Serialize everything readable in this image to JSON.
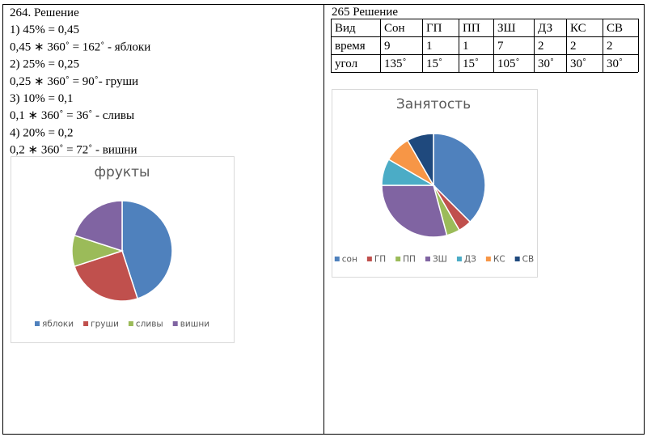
{
  "document": {
    "left": {
      "lines": [
        "264. Решение",
        "1) 45% = 0,45",
        "0,45 ∗ 360˚ = 162˚ - яблоки",
        "2) 25% = 0,25",
        "0,25 ∗ 360˚ = 90˚- груши",
        "3) 10% = 0,1",
        "0,1 ∗ 360˚ = 36˚ - сливы",
        "4) 20% = 0,2",
        "0,2 ∗ 360˚ = 72˚ - вишни"
      ]
    },
    "right": {
      "heading": "265 Решение",
      "table": {
        "header": [
          "Вид",
          "Сон",
          "ГП",
          "ПП",
          "ЗШ",
          "ДЗ",
          "КС",
          "СВ"
        ],
        "rows": [
          [
            "время",
            "9",
            "1",
            "1",
            "7",
            "2",
            "2",
            "2"
          ],
          [
            "угол",
            "135˚",
            "15˚",
            "15˚",
            "105˚",
            "30˚",
            "30˚",
            "30˚"
          ]
        ]
      }
    }
  },
  "chart_data": [
    {
      "type": "pie",
      "title": "фрукты",
      "categories": [
        "яблоки",
        "груши",
        "сливы",
        "вишни"
      ],
      "values": [
        45,
        25,
        10,
        20
      ],
      "colors": [
        "#4f81bd",
        "#c0504d",
        "#9bbb59",
        "#8064a2"
      ],
      "legend": "bottom"
    },
    {
      "type": "pie",
      "title": "Занятость",
      "categories": [
        "сон",
        "ГП",
        "ПП",
        "ЗШ",
        "ДЗ",
        "КС",
        "СВ"
      ],
      "values": [
        9,
        1,
        1,
        7,
        2,
        2,
        2
      ],
      "colors": [
        "#4f81bd",
        "#c0504d",
        "#9bbb59",
        "#8064a2",
        "#4bacc6",
        "#f79646",
        "#1f497d"
      ],
      "legend": "bottom"
    }
  ]
}
